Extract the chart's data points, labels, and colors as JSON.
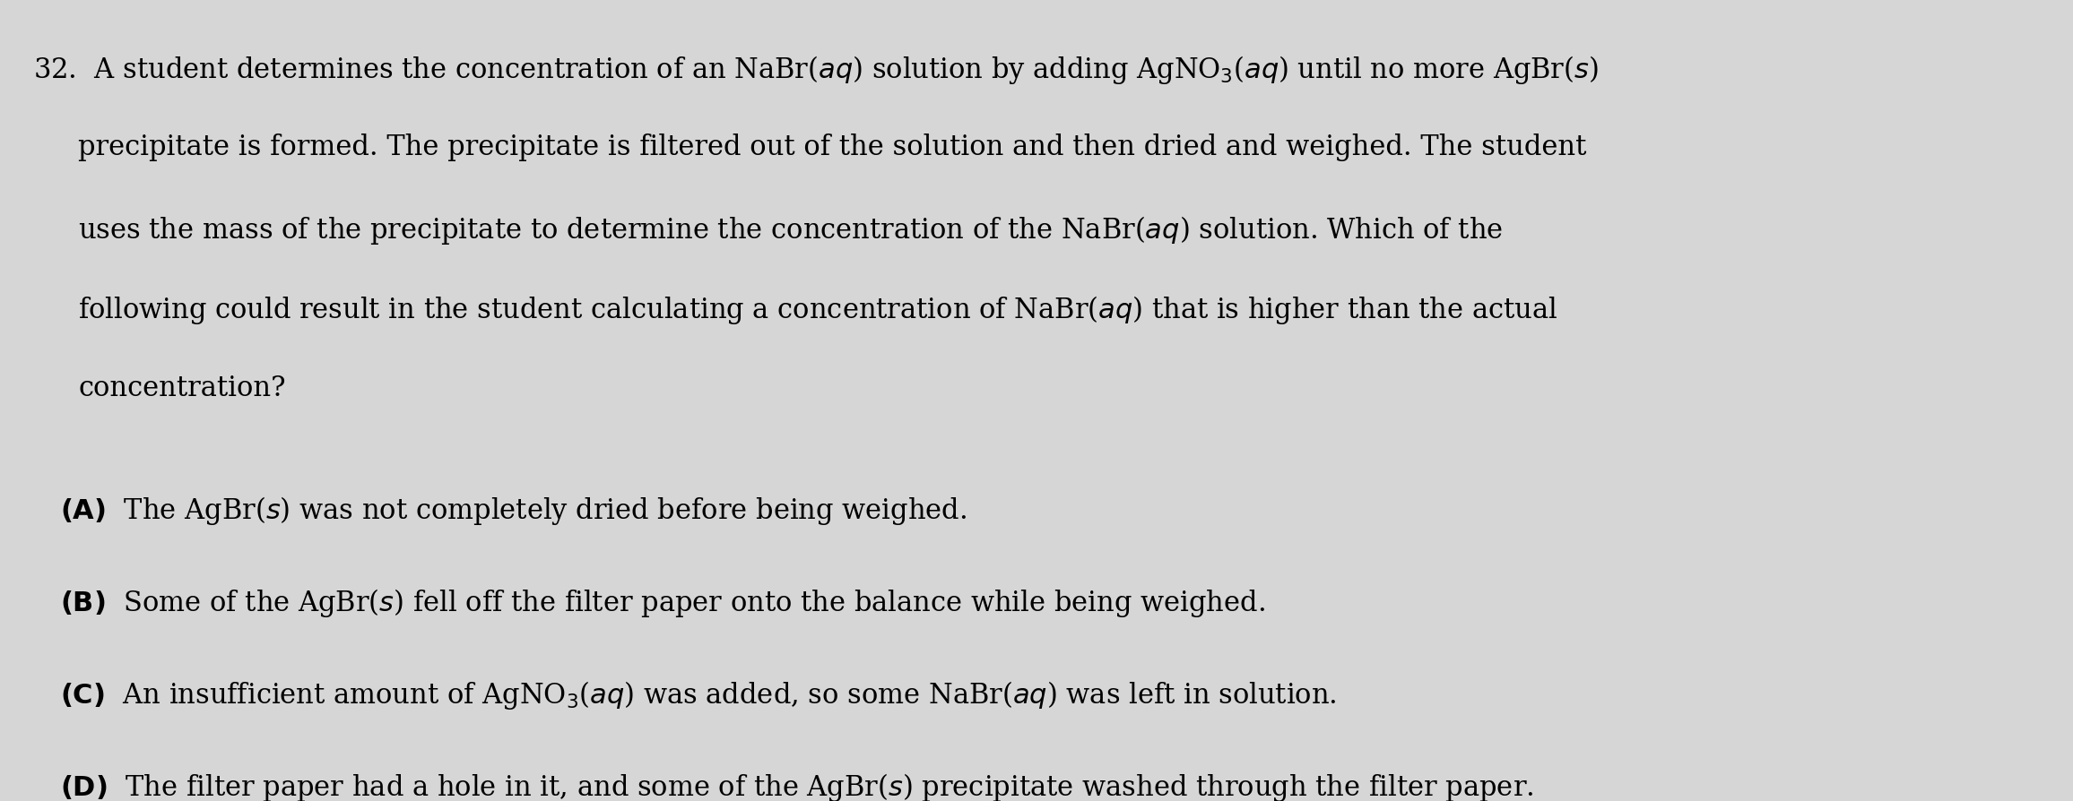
{
  "background_color": "#d6d6d6",
  "text_color": "#000000",
  "figsize": [
    23.12,
    8.95
  ],
  "dpi": 100,
  "question_number": "32.",
  "question_lines": [
    "32. A student determines the concentration of an NaBr(αα) solution by adding AgNO₃(αα) until no more AgBr(α)",
    "     precipitate is formed. The precipitate is filtered out of the solution and then dried and weighed. The student",
    "     uses the mass of the precipitate to determine the concentration of the NaBr(αα) solution. Which of the",
    "     following could result in the student calculating a concentration of NaBr(αα) that is higher than the actual",
    "     concentration?"
  ],
  "options": [
    "(A) The AgBr(α) was not completely dried before being weighed.",
    "(B) Some of the AgBr(α) fell off the filter paper onto the balance while being weighed.",
    "(C) An insufficient amount of AgNO₃(αα) was added, so some NaBr(αα) was left in solution.",
    "(D) The filter paper had a hole in it, and some of the AgBr(α) precipitate washed through the filter paper."
  ],
  "font_size_question": 22,
  "font_size_options": 22,
  "font_family": "serif"
}
